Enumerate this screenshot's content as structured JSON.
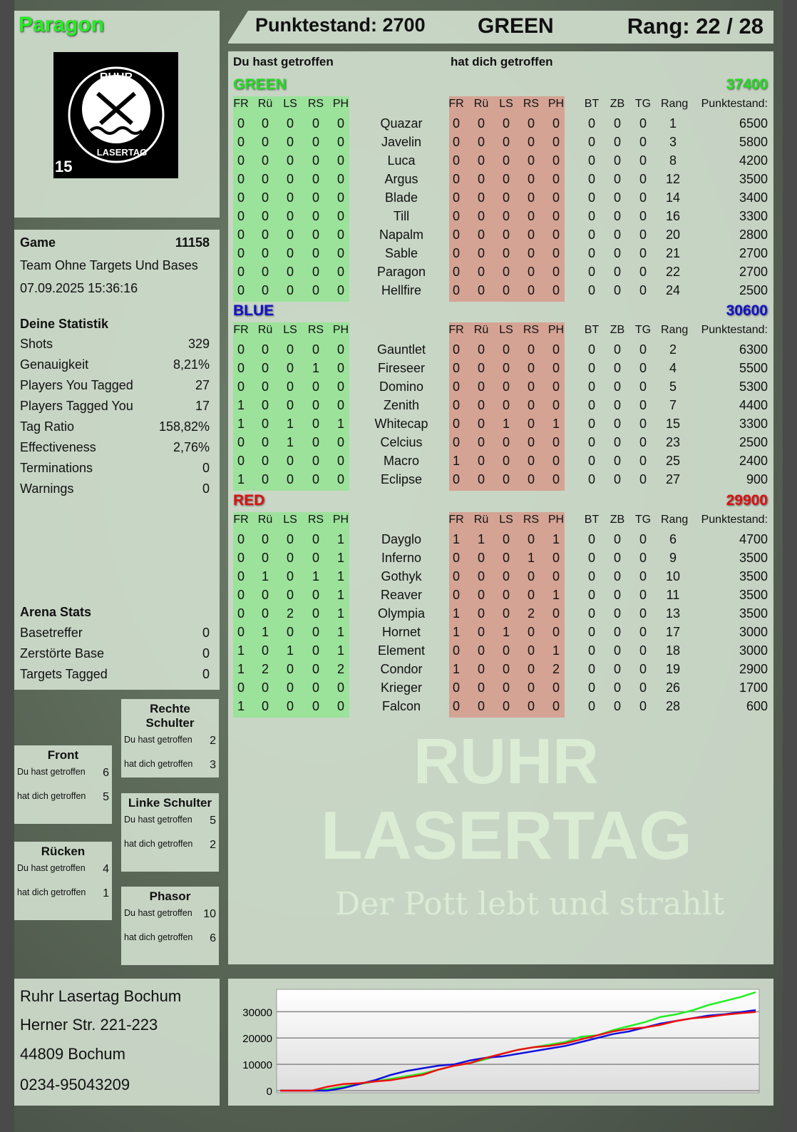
{
  "header": {
    "player": "Paragon",
    "score_label": "Punktestand: 2700",
    "team": "GREEN",
    "rank_label": "Rang: 22 / 28"
  },
  "logo": {
    "text_top": "RUHR",
    "text_bottom": "LASERTAG",
    "age": "15"
  },
  "game": {
    "label": "Game",
    "id": "11158",
    "mode": "Team Ohne Targets Und Bases",
    "datetime": "07.09.2025 15:36:16"
  },
  "stats": {
    "title": "Deine Statistik",
    "items": [
      {
        "label": "Shots",
        "value": "329"
      },
      {
        "label": "Genauigkeit",
        "value": "8,21%"
      },
      {
        "label": "Players You Tagged",
        "value": "27"
      },
      {
        "label": "Players Tagged You",
        "value": "17"
      },
      {
        "label": "Tag Ratio",
        "value": "158,82%"
      },
      {
        "label": "Effectiveness",
        "value": "2,76%"
      },
      {
        "label": "Terminations",
        "value": "0"
      },
      {
        "label": "Warnings",
        "value": "0"
      }
    ]
  },
  "arena": {
    "title": "Arena Stats",
    "items": [
      {
        "label": "Basetreffer",
        "value": "0"
      },
      {
        "label": "Zerstörte Base",
        "value": "0"
      },
      {
        "label": "Targets Tagged",
        "value": "0"
      }
    ]
  },
  "hitzones": [
    {
      "title": "Rechte Schulter",
      "you_hit_label": "Du hast getroffen",
      "you_hit": "2",
      "hit_you_label": "hat dich getroffen",
      "hit_you": "3"
    },
    {
      "title": "Front",
      "you_hit_label": "Du hast getroffen",
      "you_hit": "6",
      "hit_you_label": "hat dich getroffen",
      "hit_you": "5"
    },
    {
      "title": "Linke Schulter",
      "you_hit_label": "Du hast getroffen",
      "you_hit": "5",
      "hit_you_label": "hat dich getroffen",
      "hit_you": "2"
    },
    {
      "title": "Rücken",
      "you_hit_label": "Du hast getroffen",
      "you_hit": "4",
      "hit_you_label": "hat dich getroffen",
      "hit_you": "1"
    },
    {
      "title": "Phasor",
      "you_hit_label": "Du hast getroffen",
      "you_hit": "10",
      "hit_you_label": "hat dich getroffen",
      "hit_you": "6"
    }
  ],
  "address": {
    "name": "Ruhr Lasertag Bochum",
    "street": "Herner Str. 221-223",
    "city": "44809 Bochum",
    "phone": "0234-95043209"
  },
  "main": {
    "you_hit_title": "Du hast getroffen",
    "hit_you_title": "hat dich getroffen",
    "hit_cols": [
      "FR",
      "Rü",
      "LS",
      "RS",
      "PH"
    ],
    "extra_cols": [
      "BT",
      "ZB",
      "TG",
      "Rang",
      "Punktestand:"
    ],
    "teams": [
      {
        "name": "GREEN",
        "total": "37400",
        "color": "#22dd22",
        "players": [
          [
            "Quazar",
            [
              0,
              0,
              0,
              0,
              0
            ],
            [
              0,
              0,
              0,
              0,
              0
            ],
            [
              0,
              0,
              0,
              1,
              6500
            ]
          ],
          [
            "Javelin",
            [
              0,
              0,
              0,
              0,
              0
            ],
            [
              0,
              0,
              0,
              0,
              0
            ],
            [
              0,
              0,
              0,
              3,
              5800
            ]
          ],
          [
            "Luca",
            [
              0,
              0,
              0,
              0,
              0
            ],
            [
              0,
              0,
              0,
              0,
              0
            ],
            [
              0,
              0,
              0,
              8,
              4200
            ]
          ],
          [
            "Argus",
            [
              0,
              0,
              0,
              0,
              0
            ],
            [
              0,
              0,
              0,
              0,
              0
            ],
            [
              0,
              0,
              0,
              12,
              3500
            ]
          ],
          [
            "Blade",
            [
              0,
              0,
              0,
              0,
              0
            ],
            [
              0,
              0,
              0,
              0,
              0
            ],
            [
              0,
              0,
              0,
              14,
              3400
            ]
          ],
          [
            "Till",
            [
              0,
              0,
              0,
              0,
              0
            ],
            [
              0,
              0,
              0,
              0,
              0
            ],
            [
              0,
              0,
              0,
              16,
              3300
            ]
          ],
          [
            "Napalm",
            [
              0,
              0,
              0,
              0,
              0
            ],
            [
              0,
              0,
              0,
              0,
              0
            ],
            [
              0,
              0,
              0,
              20,
              2800
            ]
          ],
          [
            "Sable",
            [
              0,
              0,
              0,
              0,
              0
            ],
            [
              0,
              0,
              0,
              0,
              0
            ],
            [
              0,
              0,
              0,
              21,
              2700
            ]
          ],
          [
            "Paragon",
            [
              0,
              0,
              0,
              0,
              0
            ],
            [
              0,
              0,
              0,
              0,
              0
            ],
            [
              0,
              0,
              0,
              22,
              2700
            ]
          ],
          [
            "Hellfire",
            [
              0,
              0,
              0,
              0,
              0
            ],
            [
              0,
              0,
              0,
              0,
              0
            ],
            [
              0,
              0,
              0,
              24,
              2500
            ]
          ]
        ]
      },
      {
        "name": "BLUE",
        "total": "30600",
        "color": "#1010cc",
        "players": [
          [
            "Gauntlet",
            [
              0,
              0,
              0,
              0,
              0
            ],
            [
              0,
              0,
              0,
              0,
              0
            ],
            [
              0,
              0,
              0,
              2,
              6300
            ]
          ],
          [
            "Fireseer",
            [
              0,
              0,
              0,
              1,
              0
            ],
            [
              0,
              0,
              0,
              0,
              0
            ],
            [
              0,
              0,
              0,
              4,
              5500
            ]
          ],
          [
            "Domino",
            [
              0,
              0,
              0,
              0,
              0
            ],
            [
              0,
              0,
              0,
              0,
              0
            ],
            [
              0,
              0,
              0,
              5,
              5300
            ]
          ],
          [
            "Zenith",
            [
              1,
              0,
              0,
              0,
              0
            ],
            [
              0,
              0,
              0,
              0,
              0
            ],
            [
              0,
              0,
              0,
              7,
              4400
            ]
          ],
          [
            "Whitecap",
            [
              1,
              0,
              1,
              0,
              1
            ],
            [
              0,
              0,
              1,
              0,
              1
            ],
            [
              0,
              0,
              0,
              15,
              3300
            ]
          ],
          [
            "Celcius",
            [
              0,
              0,
              1,
              0,
              0
            ],
            [
              0,
              0,
              0,
              0,
              0
            ],
            [
              0,
              0,
              0,
              23,
              2500
            ]
          ],
          [
            "Macro",
            [
              0,
              0,
              0,
              0,
              0
            ],
            [
              1,
              0,
              0,
              0,
              0
            ],
            [
              0,
              0,
              0,
              25,
              2400
            ]
          ],
          [
            "Eclipse",
            [
              1,
              0,
              0,
              0,
              0
            ],
            [
              0,
              0,
              0,
              0,
              0
            ],
            [
              0,
              0,
              0,
              27,
              900
            ]
          ]
        ]
      },
      {
        "name": "RED",
        "total": "29900",
        "color": "#dd1111",
        "players": [
          [
            "Dayglo",
            [
              0,
              0,
              0,
              0,
              1
            ],
            [
              1,
              1,
              0,
              0,
              1
            ],
            [
              0,
              0,
              0,
              6,
              4700
            ]
          ],
          [
            "Inferno",
            [
              0,
              0,
              0,
              0,
              1
            ],
            [
              0,
              0,
              0,
              1,
              0
            ],
            [
              0,
              0,
              0,
              9,
              3500
            ]
          ],
          [
            "Gothyk",
            [
              0,
              1,
              0,
              1,
              1
            ],
            [
              0,
              0,
              0,
              0,
              0
            ],
            [
              0,
              0,
              0,
              10,
              3500
            ]
          ],
          [
            "Reaver",
            [
              0,
              0,
              0,
              0,
              1
            ],
            [
              0,
              0,
              0,
              0,
              1
            ],
            [
              0,
              0,
              0,
              11,
              3500
            ]
          ],
          [
            "Olympia",
            [
              0,
              0,
              2,
              0,
              1
            ],
            [
              1,
              0,
              0,
              2,
              0
            ],
            [
              0,
              0,
              0,
              13,
              3500
            ]
          ],
          [
            "Hornet",
            [
              0,
              1,
              0,
              0,
              1
            ],
            [
              1,
              0,
              1,
              0,
              0
            ],
            [
              0,
              0,
              0,
              17,
              3000
            ]
          ],
          [
            "Element",
            [
              1,
              0,
              1,
              0,
              1
            ],
            [
              0,
              0,
              0,
              0,
              1
            ],
            [
              0,
              0,
              0,
              18,
              3000
            ]
          ],
          [
            "Condor",
            [
              1,
              2,
              0,
              0,
              2
            ],
            [
              1,
              0,
              0,
              0,
              2
            ],
            [
              0,
              0,
              0,
              19,
              2900
            ]
          ],
          [
            "Krieger",
            [
              0,
              0,
              0,
              0,
              0
            ],
            [
              0,
              0,
              0,
              0,
              0
            ],
            [
              0,
              0,
              0,
              26,
              1700
            ]
          ],
          [
            "Falcon",
            [
              1,
              0,
              0,
              0,
              0
            ],
            [
              0,
              0,
              0,
              0,
              0
            ],
            [
              0,
              0,
              0,
              28,
              600
            ]
          ]
        ]
      }
    ]
  },
  "watermark": {
    "line1": "RUHR",
    "line2": "LASERTAG",
    "slogan": "Der Pott lebt und strahlt"
  },
  "chart_data": {
    "type": "line",
    "ylim": [
      0,
      38500
    ],
    "yticks": [
      0,
      10000,
      20000,
      30000
    ],
    "grid": true,
    "series": [
      {
        "color": "#22ee22",
        "values": [
          0,
          0,
          0,
          500,
          1500,
          2500,
          3500,
          4500,
          5500,
          6500,
          8000,
          9500,
          10500,
          12000,
          14000,
          15500,
          16500,
          17500,
          18500,
          20500,
          21000,
          23000,
          24500,
          26000,
          28000,
          29000,
          30500,
          32500,
          34000,
          35500,
          37400
        ]
      },
      {
        "color": "#1010dd",
        "values": [
          0,
          0,
          0,
          0,
          1000,
          2500,
          4000,
          6000,
          7500,
          8500,
          9500,
          10000,
          11500,
          12500,
          13000,
          14000,
          15000,
          16000,
          17000,
          18500,
          20000,
          21500,
          22500,
          24000,
          25500,
          26500,
          27500,
          28500,
          29000,
          29800,
          30600
        ]
      },
      {
        "color": "#ee1111",
        "values": [
          0,
          0,
          0,
          1500,
          2500,
          2800,
          3500,
          4000,
          5000,
          6000,
          8000,
          9500,
          10500,
          12500,
          14000,
          15500,
          16500,
          17000,
          18000,
          19500,
          21000,
          22500,
          23500,
          24000,
          25000,
          26500,
          27500,
          28000,
          28800,
          29400,
          29900
        ]
      }
    ]
  }
}
